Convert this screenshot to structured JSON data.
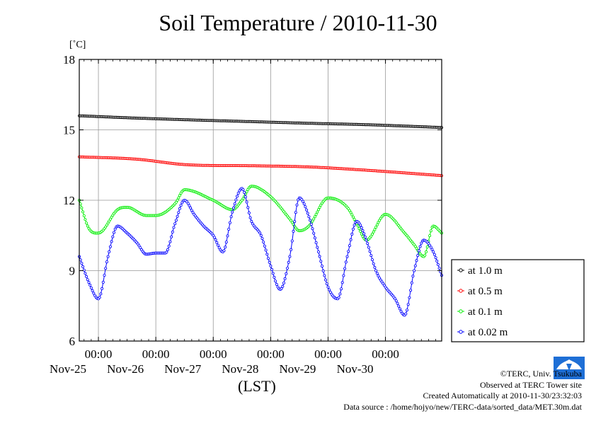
{
  "chart_data": {
    "type": "line",
    "title": "Soil Temperature / 2010-11-30",
    "ylabel": "[˚C]",
    "xlabel": "(LST)",
    "ylim": [
      6,
      18
    ],
    "yticks": [
      6,
      9,
      12,
      15,
      18
    ],
    "xlim": [
      "2010-11-24T16:00",
      "2010-11-30T23:30"
    ],
    "xticks": [
      {
        "time": "2010-11-25T00:00",
        "label_time": "00:00",
        "label_date": "Nov-25"
      },
      {
        "time": "2010-11-26T00:00",
        "label_time": "00:00",
        "label_date": "Nov-26"
      },
      {
        "time": "2010-11-27T00:00",
        "label_time": "00:00",
        "label_date": "Nov-27"
      },
      {
        "time": "2010-11-28T00:00",
        "label_time": "00:00",
        "label_date": "Nov-28"
      },
      {
        "time": "2010-11-29T00:00",
        "label_time": "00:00",
        "label_date": "Nov-29"
      },
      {
        "time": "2010-11-30T00:00",
        "label_time": "00:00",
        "label_date": "Nov-30"
      }
    ],
    "grid": true,
    "legend": "right",
    "series": [
      {
        "name": "at 1.0 m",
        "color": "#000000",
        "x": [
          "2010-11-24T16:00",
          "2010-11-25T16:00",
          "2010-11-26T16:00",
          "2010-11-27T16:00",
          "2010-11-28T16:00",
          "2010-11-29T16:00",
          "2010-11-30T23:30"
        ],
        "y": [
          15.6,
          15.5,
          15.42,
          15.35,
          15.28,
          15.22,
          15.1
        ]
      },
      {
        "name": "at 0.5 m",
        "color": "#ff0000",
        "x": [
          "2010-11-24T16:00",
          "2010-11-25T16:00",
          "2010-11-26T12:00",
          "2010-11-27T16:00",
          "2010-11-28T16:00",
          "2010-11-29T16:00",
          "2010-11-30T23:30"
        ],
        "y": [
          13.85,
          13.75,
          13.52,
          13.47,
          13.42,
          13.28,
          13.05
        ]
      },
      {
        "name": "at 0.1 m",
        "color": "#00ee00",
        "x": [
          "2010-11-24T16:00",
          "2010-11-24T20:00",
          "2010-11-25T00:00",
          "2010-11-25T08:00",
          "2010-11-25T12:00",
          "2010-11-25T20:00",
          "2010-11-26T00:00",
          "2010-11-26T08:00",
          "2010-11-26T12:00",
          "2010-11-27T00:00",
          "2010-11-27T08:00",
          "2010-11-27T12:00",
          "2010-11-27T16:00",
          "2010-11-28T00:00",
          "2010-11-28T08:00",
          "2010-11-28T12:00",
          "2010-11-28T16:00",
          "2010-11-29T00:00",
          "2010-11-29T08:00",
          "2010-11-29T12:00",
          "2010-11-29T16:00",
          "2010-11-30T00:00",
          "2010-11-30T08:00",
          "2010-11-30T12:00",
          "2010-11-30T16:00",
          "2010-11-30T20:00",
          "2010-11-30T23:30"
        ],
        "y": [
          12.0,
          10.8,
          10.6,
          11.6,
          11.7,
          11.35,
          11.35,
          11.85,
          12.45,
          12.0,
          11.6,
          12.0,
          12.6,
          12.15,
          11.2,
          10.7,
          10.9,
          12.1,
          11.7,
          11.0,
          10.3,
          11.4,
          10.6,
          10.1,
          9.6,
          10.9,
          10.6
        ]
      },
      {
        "name": "at 0.02 m",
        "color": "#0000ff",
        "x": [
          "2010-11-24T16:00",
          "2010-11-24T20:00",
          "2010-11-25T00:00",
          "2010-11-25T04:00",
          "2010-11-25T08:00",
          "2010-11-25T12:00",
          "2010-11-25T16:00",
          "2010-11-25T20:00",
          "2010-11-26T00:00",
          "2010-11-26T04:00",
          "2010-11-26T08:00",
          "2010-11-26T12:00",
          "2010-11-26T16:00",
          "2010-11-26T20:00",
          "2010-11-27T00:00",
          "2010-11-27T04:00",
          "2010-11-27T08:00",
          "2010-11-27T12:00",
          "2010-11-27T16:00",
          "2010-11-27T20:00",
          "2010-11-28T00:00",
          "2010-11-28T04:00",
          "2010-11-28T08:00",
          "2010-11-28T12:00",
          "2010-11-28T16:00",
          "2010-11-28T20:00",
          "2010-11-29T00:00",
          "2010-11-29T04:00",
          "2010-11-29T08:00",
          "2010-11-29T12:00",
          "2010-11-29T16:00",
          "2010-11-29T20:00",
          "2010-11-30T00:00",
          "2010-11-30T04:00",
          "2010-11-30T08:00",
          "2010-11-30T12:00",
          "2010-11-30T16:00",
          "2010-11-30T20:00",
          "2010-11-30T23:30"
        ],
        "y": [
          9.6,
          8.5,
          7.8,
          9.6,
          10.9,
          10.6,
          10.2,
          9.7,
          9.75,
          9.75,
          11.0,
          12.0,
          11.4,
          10.9,
          10.5,
          9.8,
          11.5,
          12.5,
          11.1,
          10.5,
          9.2,
          8.2,
          9.6,
          12.1,
          11.3,
          9.8,
          8.3,
          7.8,
          9.6,
          11.1,
          10.3,
          9.0,
          8.3,
          7.8,
          7.1,
          9.0,
          10.3,
          9.8,
          8.8
        ]
      }
    ]
  },
  "credits": {
    "copyright": "©TERC, Univ. Tsukuba",
    "observed": "Observed at TERC Tower site",
    "created": "Created Automatically at 2010-11-30/23:32:03",
    "source": "Data source : /home/hojyo/new/TERC-data/sorted_data/MET.30m.dat"
  },
  "logo": {
    "text": "TERC",
    "color": "#1e6fd6"
  }
}
